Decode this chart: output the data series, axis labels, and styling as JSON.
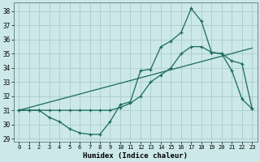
{
  "xlabel": "Humidex (Indice chaleur)",
  "background_color": "#cce8e8",
  "grid_color": "#aacccc",
  "line_color": "#1a6b5a",
  "xlim": [
    -0.5,
    23.5
  ],
  "ylim": [
    28.8,
    38.6
  ],
  "yticks": [
    29,
    30,
    31,
    32,
    33,
    34,
    35,
    36,
    37,
    38
  ],
  "xticks": [
    0,
    1,
    2,
    3,
    4,
    5,
    6,
    7,
    8,
    9,
    10,
    11,
    12,
    13,
    14,
    15,
    16,
    17,
    18,
    19,
    20,
    21,
    22,
    23
  ],
  "series1_x": [
    0,
    1,
    2,
    3,
    4,
    5,
    6,
    7,
    8,
    9,
    10,
    11,
    12,
    13,
    14,
    15,
    16,
    17,
    18,
    19,
    20,
    21,
    22,
    23
  ],
  "series1_y": [
    31.0,
    31.0,
    31.0,
    30.5,
    30.2,
    29.7,
    29.4,
    29.3,
    29.3,
    30.2,
    31.4,
    31.6,
    33.8,
    33.9,
    35.5,
    35.9,
    36.5,
    38.2,
    37.3,
    35.1,
    35.0,
    33.8,
    31.8,
    31.1
  ],
  "series2_x": [
    0,
    1,
    2,
    3,
    4,
    5,
    6,
    7,
    8,
    9,
    10,
    11,
    12,
    13,
    14,
    15,
    16,
    17,
    18,
    19,
    20,
    21,
    22,
    23
  ],
  "series2_y": [
    31.0,
    31.0,
    31.0,
    31.0,
    31.0,
    31.0,
    31.0,
    31.0,
    31.0,
    31.0,
    31.2,
    31.5,
    32.0,
    33.0,
    33.5,
    34.0,
    35.0,
    35.5,
    35.5,
    35.1,
    35.0,
    34.5,
    34.3,
    31.1
  ],
  "series3_x": [
    0,
    23
  ],
  "series3_y": [
    31.0,
    35.4
  ]
}
